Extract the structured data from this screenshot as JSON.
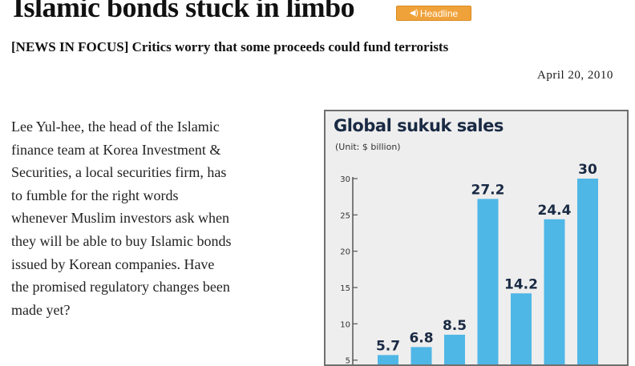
{
  "article": {
    "headline": "Islamic bonds stuck in limbo",
    "badge_label": "Headline",
    "badge_icon": "speaker-icon",
    "subhead": "[NEWS IN FOCUS] Critics worry that some proceeds could fund terrorists",
    "date": "April 20, 2010",
    "body": "Lee Yul-hee, the head of the Islamic\nfinance team at Korea Investment &\nSecurities, a local securities firm, has\nto fumble for the right words\nwhenever Muslim investors ask when\nthey will be able to buy Islamic bonds\nissued by Korean companies. Have\nthe promised regulatory changes been\nmade yet?"
  },
  "chart_data": {
    "type": "bar",
    "title": "Global sukuk sales",
    "unit": "(Unit: $ billion)",
    "yticks": [
      30,
      25,
      20,
      15,
      10,
      5
    ],
    "ylim": [
      0,
      30
    ],
    "values": [
      5.7,
      6.8,
      8.5,
      27.2,
      14.2,
      24.4,
      30
    ],
    "value_labels": [
      "5.7",
      "6.8",
      "8.5",
      "27.2",
      "14.2",
      "24.4",
      "30"
    ],
    "bar_color": "#4fb7e6",
    "grid": false
  }
}
